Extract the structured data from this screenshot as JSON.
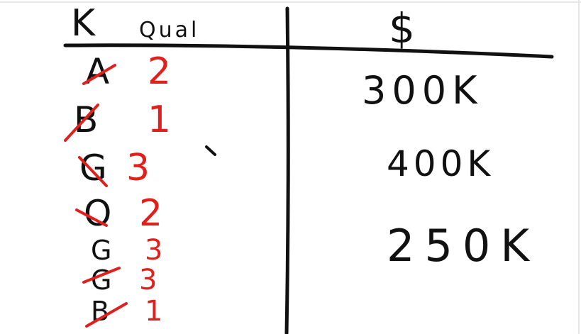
{
  "colors": {
    "ink": "#111111",
    "red_ink": "#e0201c",
    "background": "#ffffff"
  },
  "headers": {
    "left_letter": "K",
    "left_word": "Qual",
    "right": "$"
  },
  "rows": [
    {
      "letter": "A",
      "score": "2",
      "crossed": true
    },
    {
      "letter": "B",
      "score": "1",
      "crossed": true
    },
    {
      "letter": "G",
      "score": "3",
      "crossed": true
    },
    {
      "letter": "O",
      "score": "2",
      "crossed": true
    },
    {
      "letter": "G",
      "score": "3",
      "crossed": false
    },
    {
      "letter": "G",
      "score": "3",
      "crossed": true
    },
    {
      "letter": "B",
      "score": "1",
      "crossed": true
    }
  ],
  "prices": [
    "300K",
    "400K",
    "250K"
  ]
}
